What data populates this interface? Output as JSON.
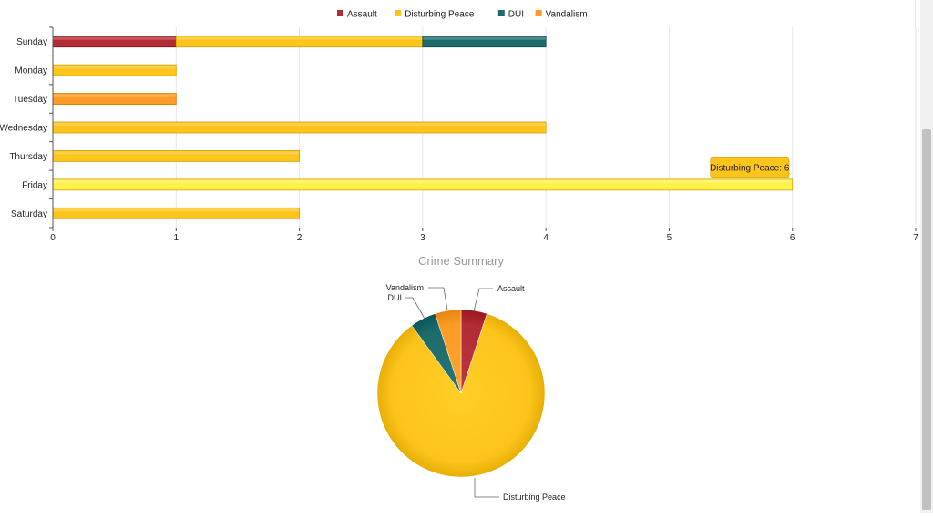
{
  "chart_data": [
    {
      "type": "bar",
      "orientation": "horizontal",
      "stacked": true,
      "categories": [
        "Sunday",
        "Monday",
        "Tuesday",
        "Wednesday",
        "Thursday",
        "Friday",
        "Saturday"
      ],
      "series": [
        {
          "name": "Assault",
          "color": "#b22c35",
          "values": [
            1,
            0,
            0,
            0,
            0,
            0,
            0
          ]
        },
        {
          "name": "Disturbing Peace",
          "color": "#fdc41c",
          "values": [
            2,
            1,
            0,
            4,
            2,
            6,
            2
          ]
        },
        {
          "name": "DUI",
          "color": "#1d6b6c",
          "values": [
            1,
            0,
            0,
            0,
            0,
            0,
            0
          ]
        },
        {
          "name": "Vandalism",
          "color": "#fd9b26",
          "values": [
            0,
            0,
            1,
            0,
            0,
            0,
            0
          ]
        }
      ],
      "xlim": [
        0,
        7
      ],
      "xticks": [
        "0",
        "1",
        "2",
        "3",
        "4",
        "5",
        "6",
        "7"
      ],
      "grid": true,
      "legend_position": "top-center",
      "highlighted_category": "Friday",
      "tooltip": "Disturbing Peace: 6"
    },
    {
      "type": "pie",
      "title": "Crime Summary",
      "labels": [
        "Assault",
        "Disturbing Peace",
        "DUI",
        "Vandalism"
      ],
      "values": [
        1,
        17,
        1,
        1
      ],
      "colors": [
        "#b22c35",
        "#fdc41c",
        "#1d6b6c",
        "#fd9b26"
      ]
    }
  ]
}
